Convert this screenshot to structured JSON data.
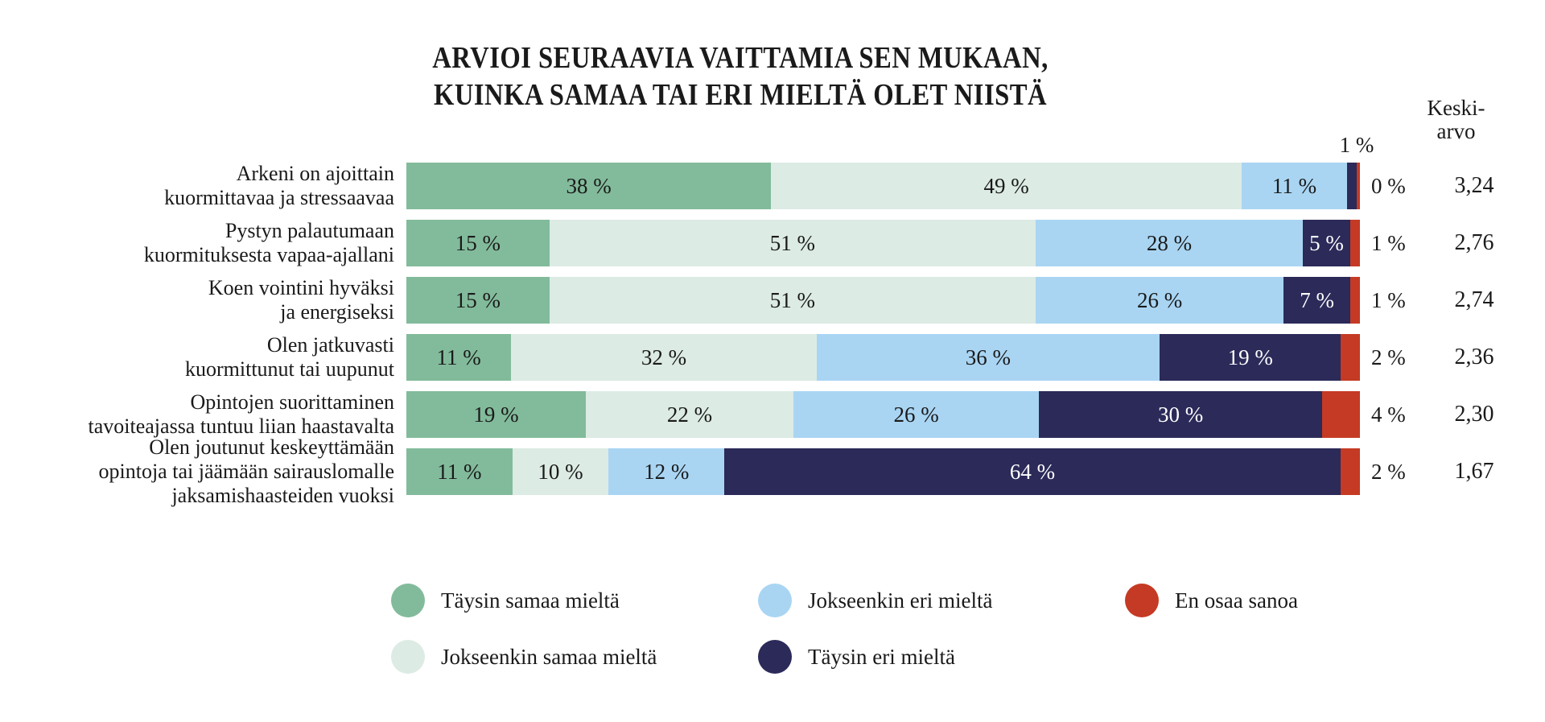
{
  "title": {
    "line1": "ARVIOI SEURAAVIA VAITTAMIA SEN MUKAAN,",
    "line2": "KUINKA SAMAA TAI ERI MIELTÄ OLET NIISTÄ"
  },
  "avg_header": {
    "line1": "Keski-",
    "line2": "arvo"
  },
  "chart_data": {
    "type": "bar",
    "variant": "horizontal_stacked_100pct",
    "title": "ARVIOI SEURAAVIA VAITTAMIA SEN MUKAAN, KUINKA SAMAA TAI ERI MIELTÄ OLET NIISTÄ",
    "unit_suffix": " %",
    "grid": false,
    "legend_position": "bottom",
    "average_column_header": "Keski-arvo",
    "categories": [
      "Arkeni on ajoittain\nkuormittavaa ja stressaavaa",
      "Pystyn palautumaan\nkuormituksesta vapaa-ajallani",
      "Koen vointini hyväksi\nja energiseksi",
      "Olen jatkuvasti\nkuormittunut tai uupunut",
      "Opintojen suorittaminen\ntavoiteajassa tuntuu liian haastavalta",
      "Olen joutunut keskeyttämään\nopintoja tai jäämään sairauslomalle\njaksamishaasteiden vuoksi"
    ],
    "series": [
      {
        "name": "Täysin samaa mieltä",
        "color": "#82BB9B",
        "values": [
          38,
          15,
          15,
          11,
          19,
          11
        ]
      },
      {
        "name": "Jokseenkin samaa mieltä",
        "color": "#DCEBE4",
        "values": [
          49,
          51,
          51,
          32,
          22,
          10
        ]
      },
      {
        "name": "Jokseenkin eri mieltä",
        "color": "#A9D5F3",
        "values": [
          11,
          28,
          26,
          36,
          26,
          12
        ]
      },
      {
        "name": "Täysin eri mieltä",
        "color": "#2B2A59",
        "values": [
          1,
          5,
          7,
          19,
          30,
          64
        ]
      },
      {
        "name": "En osaa sanoa",
        "color": "#C53A24",
        "values": [
          0,
          1,
          1,
          2,
          4,
          2
        ]
      }
    ],
    "outside_labels": [
      "0 %",
      "1 %",
      "1 %",
      "2 %",
      "4 %",
      "2 %"
    ],
    "averages": [
      "3,24",
      "2,76",
      "2,74",
      "2,36",
      "2,30",
      "1,67"
    ],
    "row1_annotation": "1 %"
  },
  "legend": {
    "items": [
      {
        "label": "Täysin samaa mieltä",
        "color": "#82BB9B"
      },
      {
        "label": "Jokseenkin eri mieltä",
        "color": "#A9D5F3"
      },
      {
        "label": "En osaa sanoa",
        "color": "#C53A24"
      },
      {
        "label": "Jokseenkin samaa mieltä",
        "color": "#DCEBE4"
      },
      {
        "label": "Täysin eri mieltä",
        "color": "#2B2A59"
      }
    ]
  }
}
